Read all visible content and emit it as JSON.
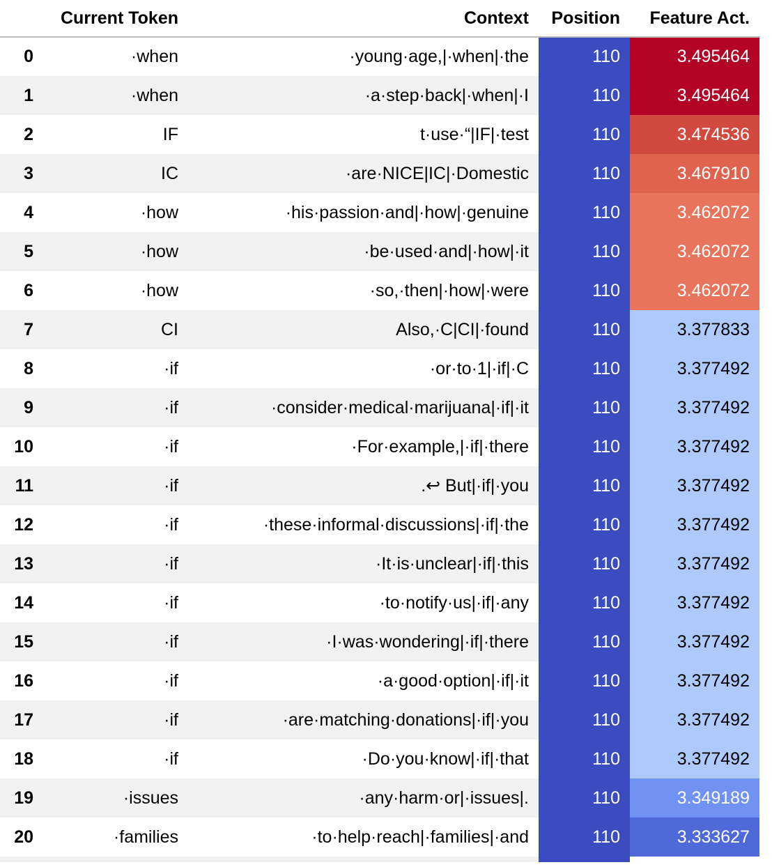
{
  "table": {
    "headers": {
      "index": "",
      "token": "Current Token",
      "context": "Context",
      "position": "Position",
      "activation": "Feature Act."
    },
    "rows": [
      {
        "index": "0",
        "token": "·when",
        "context": "·young·age,|·when|·the",
        "position": "110",
        "activation": "3.495464",
        "act_color": "#b40426",
        "act_text": "light"
      },
      {
        "index": "1",
        "token": "·when",
        "context": "·a·step·back|·when|·I",
        "position": "110",
        "activation": "3.495464",
        "act_color": "#b40426",
        "act_text": "light"
      },
      {
        "index": "2",
        "token": "IF",
        "context": "t·use·“|IF|·test",
        "position": "110",
        "activation": "3.474536",
        "act_color": "#d1493f",
        "act_text": "light"
      },
      {
        "index": "3",
        "token": "IC",
        "context": "·are·NICE|IC|·Domestic",
        "position": "110",
        "activation": "3.467910",
        "act_color": "#df634e",
        "act_text": "light"
      },
      {
        "index": "4",
        "token": "·how",
        "context": "·his·passion·and|·how|·genuine",
        "position": "110",
        "activation": "3.462072",
        "act_color": "#e7745b",
        "act_text": "light"
      },
      {
        "index": "5",
        "token": "·how",
        "context": "·be·used·and|·how|·it",
        "position": "110",
        "activation": "3.462072",
        "act_color": "#e7745b",
        "act_text": "light"
      },
      {
        "index": "6",
        "token": "·how",
        "context": "·so,·then|·how|·were",
        "position": "110",
        "activation": "3.462072",
        "act_color": "#e7745b",
        "act_text": "light"
      },
      {
        "index": "7",
        "token": "CI",
        "context": "Also,·C|CI|·found",
        "position": "110",
        "activation": "3.377833",
        "act_color": "#aec9fc",
        "act_text": "dark"
      },
      {
        "index": "8",
        "token": "·if",
        "context": "·or·to·1|·if|·C",
        "position": "110",
        "activation": "3.377492",
        "act_color": "#aec9fc",
        "act_text": "dark"
      },
      {
        "index": "9",
        "token": "·if",
        "context": "·consider·medical·marijuana|·if|·it",
        "position": "110",
        "activation": "3.377492",
        "act_color": "#aec9fc",
        "act_text": "dark"
      },
      {
        "index": "10",
        "token": "·if",
        "context": "·For·example,|·if|·there",
        "position": "110",
        "activation": "3.377492",
        "act_color": "#aec9fc",
        "act_text": "dark"
      },
      {
        "index": "11",
        "token": "·if",
        "context": ".↩ But|·if|·you",
        "position": "110",
        "activation": "3.377492",
        "act_color": "#aec9fc",
        "act_text": "dark"
      },
      {
        "index": "12",
        "token": "·if",
        "context": "·these·informal·discussions|·if|·the",
        "position": "110",
        "activation": "3.377492",
        "act_color": "#aec9fc",
        "act_text": "dark"
      },
      {
        "index": "13",
        "token": "·if",
        "context": "·It·is·unclear|·if|·this",
        "position": "110",
        "activation": "3.377492",
        "act_color": "#aec9fc",
        "act_text": "dark"
      },
      {
        "index": "14",
        "token": "·if",
        "context": "·to·notify·us|·if|·any",
        "position": "110",
        "activation": "3.377492",
        "act_color": "#aec9fc",
        "act_text": "dark"
      },
      {
        "index": "15",
        "token": "·if",
        "context": "·I·was·wondering|·if|·there",
        "position": "110",
        "activation": "3.377492",
        "act_color": "#aec9fc",
        "act_text": "dark"
      },
      {
        "index": "16",
        "token": "·if",
        "context": "·a·good·option|·if|·it",
        "position": "110",
        "activation": "3.377492",
        "act_color": "#aec9fc",
        "act_text": "dark"
      },
      {
        "index": "17",
        "token": "·if",
        "context": "·are·matching·donations|·if|·you",
        "position": "110",
        "activation": "3.377492",
        "act_color": "#aec9fc",
        "act_text": "dark"
      },
      {
        "index": "18",
        "token": "·if",
        "context": "·Do·you·know|·if|·that",
        "position": "110",
        "activation": "3.377492",
        "act_color": "#aec9fc",
        "act_text": "dark"
      },
      {
        "index": "19",
        "token": "·issues",
        "context": "·any·harm·or|·issues|.",
        "position": "110",
        "activation": "3.349189",
        "act_color": "#6f92f3",
        "act_text": "light"
      },
      {
        "index": "20",
        "token": "·families",
        "context": "·to·help·reach|·families|·and",
        "position": "110",
        "activation": "3.333627",
        "act_color": "#4f69d9",
        "act_text": "light"
      }
    ]
  },
  "colors": {
    "position_bg": "#3b4cc0",
    "header_border": "#bdbdbd",
    "stripe": "#f2f2f2"
  }
}
